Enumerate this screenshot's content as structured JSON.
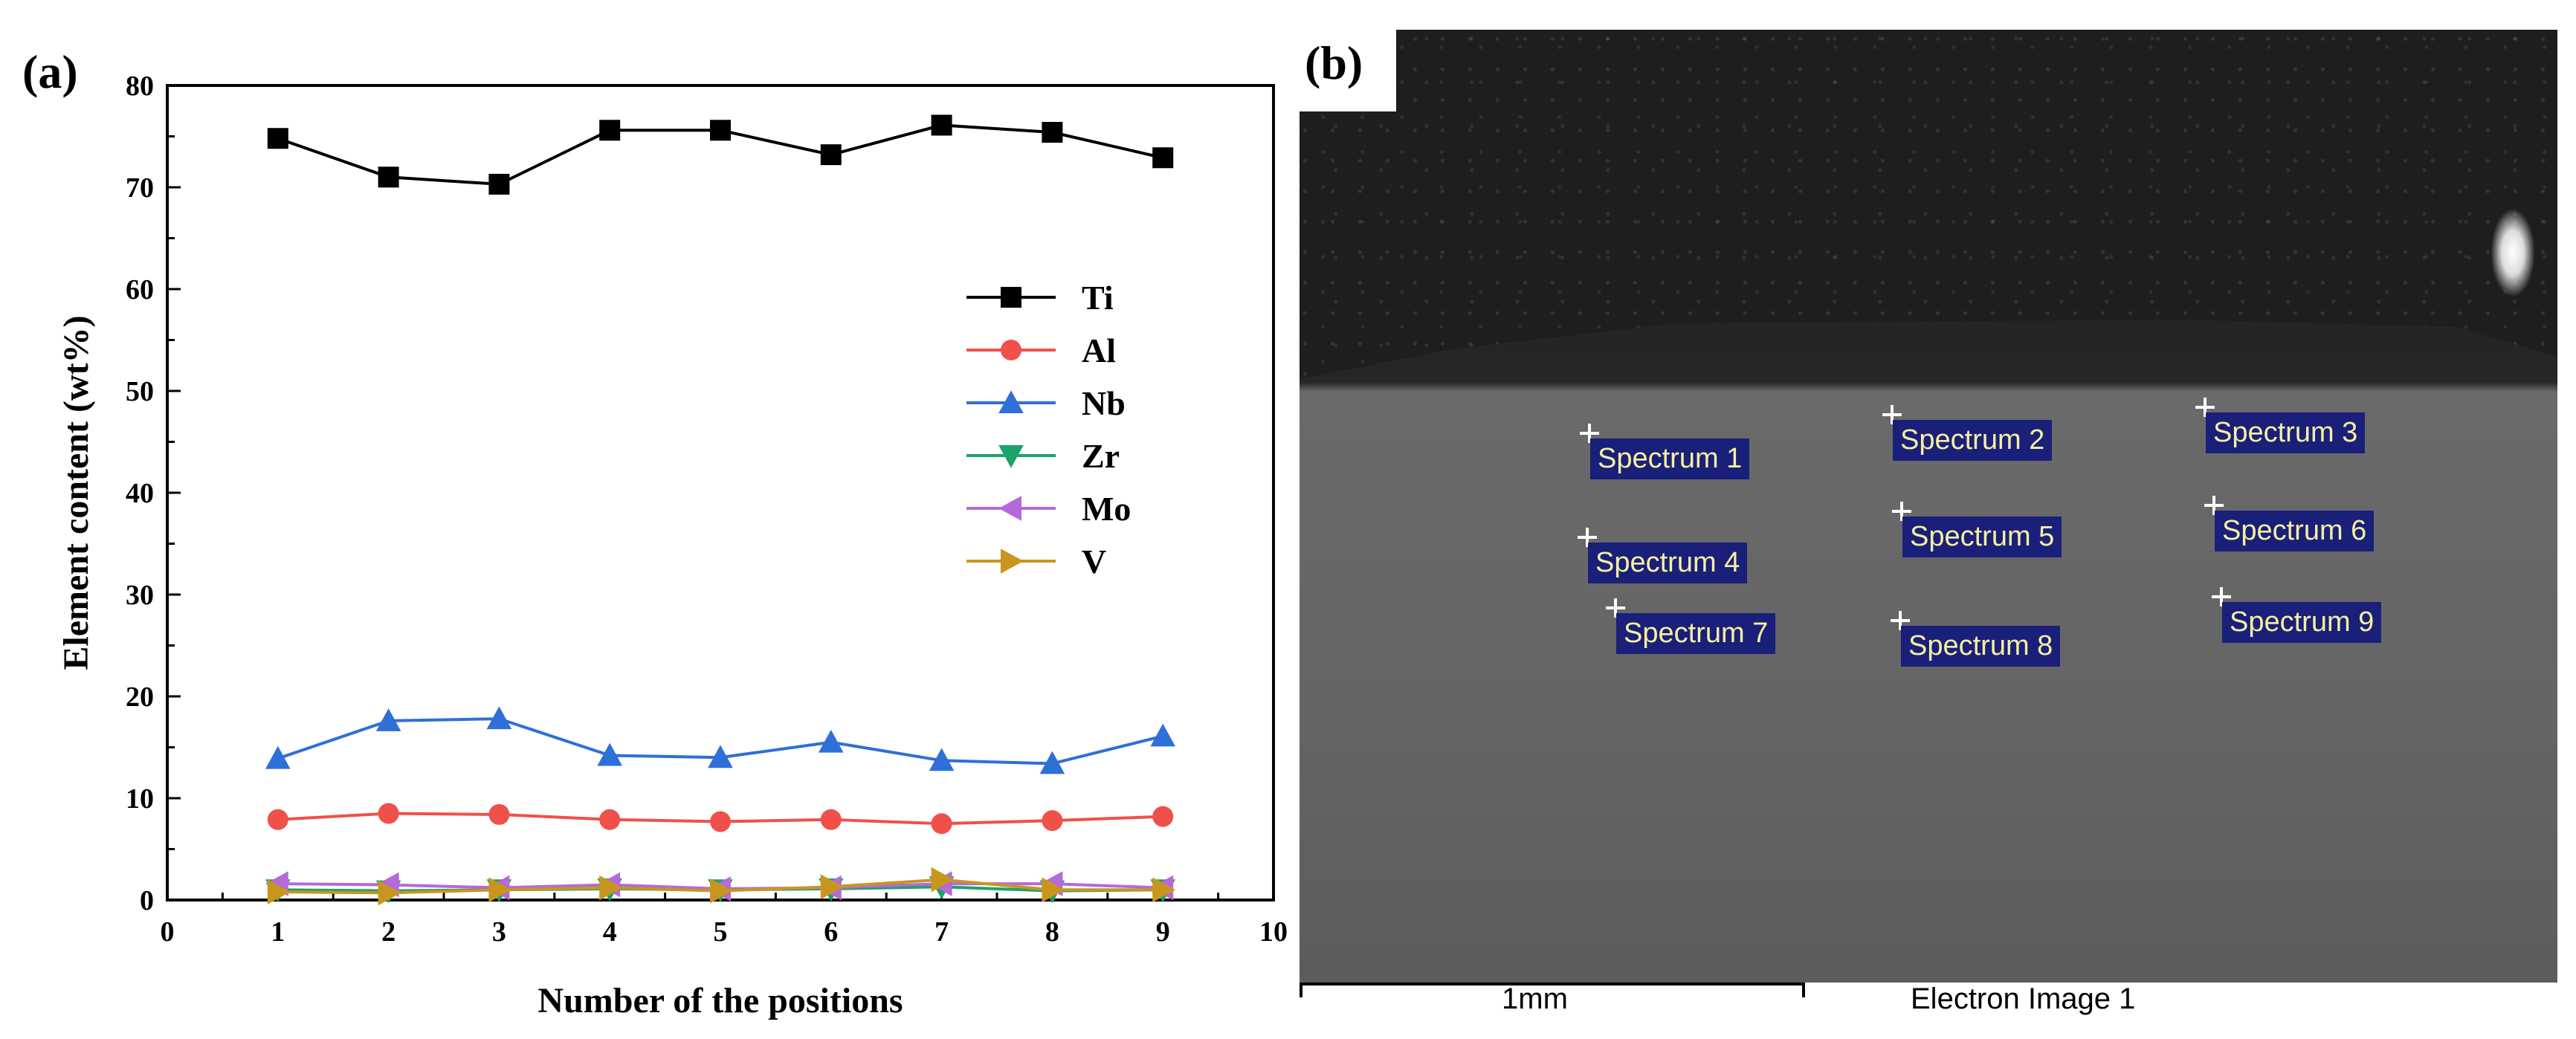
{
  "panel_a_label": "(a)",
  "panel_b_label": "(b)",
  "chart_data": {
    "type": "line",
    "title": "",
    "xlabel": "Number of the positions",
    "ylabel": "Element content (wt%)",
    "xlim": [
      0,
      10
    ],
    "ylim": [
      0,
      80
    ],
    "x_ticks": [
      0,
      1,
      2,
      3,
      4,
      5,
      6,
      7,
      8,
      9,
      10
    ],
    "y_ticks": [
      0,
      10,
      20,
      30,
      40,
      50,
      60,
      70,
      80
    ],
    "x": [
      1,
      2,
      3,
      4,
      5,
      6,
      7,
      8,
      9
    ],
    "legend_position": "right",
    "series": [
      {
        "name": "Ti",
        "color": "#000000",
        "marker": "square",
        "values": [
          74.8,
          71.0,
          70.3,
          75.6,
          75.6,
          73.2,
          76.1,
          75.4,
          72.9
        ]
      },
      {
        "name": "Al",
        "color": "#f0504a",
        "marker": "circle",
        "values": [
          7.9,
          8.5,
          8.4,
          7.9,
          7.7,
          7.9,
          7.5,
          7.8,
          8.2
        ]
      },
      {
        "name": "Nb",
        "color": "#2f6fd8",
        "marker": "triangle-up",
        "values": [
          13.9,
          17.6,
          17.8,
          14.2,
          14.0,
          15.5,
          13.7,
          13.4,
          16.1
        ]
      },
      {
        "name": "Zr",
        "color": "#1aa36a",
        "marker": "triangle-down",
        "values": [
          1.0,
          0.9,
          1.0,
          1.1,
          1.0,
          1.1,
          1.3,
          0.9,
          1.0
        ]
      },
      {
        "name": "Mo",
        "color": "#b46ad8",
        "marker": "triangle-left",
        "values": [
          1.6,
          1.5,
          1.2,
          1.5,
          1.1,
          1.2,
          1.6,
          1.6,
          1.2
        ]
      },
      {
        "name": "V",
        "color": "#c8961e",
        "marker": "triangle-right",
        "values": [
          0.8,
          0.7,
          1.0,
          1.2,
          0.9,
          1.3,
          2.0,
          1.0,
          1.0
        ]
      }
    ]
  },
  "sem_image": {
    "spectra": [
      "Spectrum 1",
      "Spectrum 2",
      "Spectrum 3",
      "Spectrum 4",
      "Spectrum 5",
      "Spectrum 6",
      "Spectrum 7",
      "Spectrum 8",
      "Spectrum 9"
    ],
    "scale_bar_label": "1mm",
    "caption": "Electron Image 1"
  }
}
